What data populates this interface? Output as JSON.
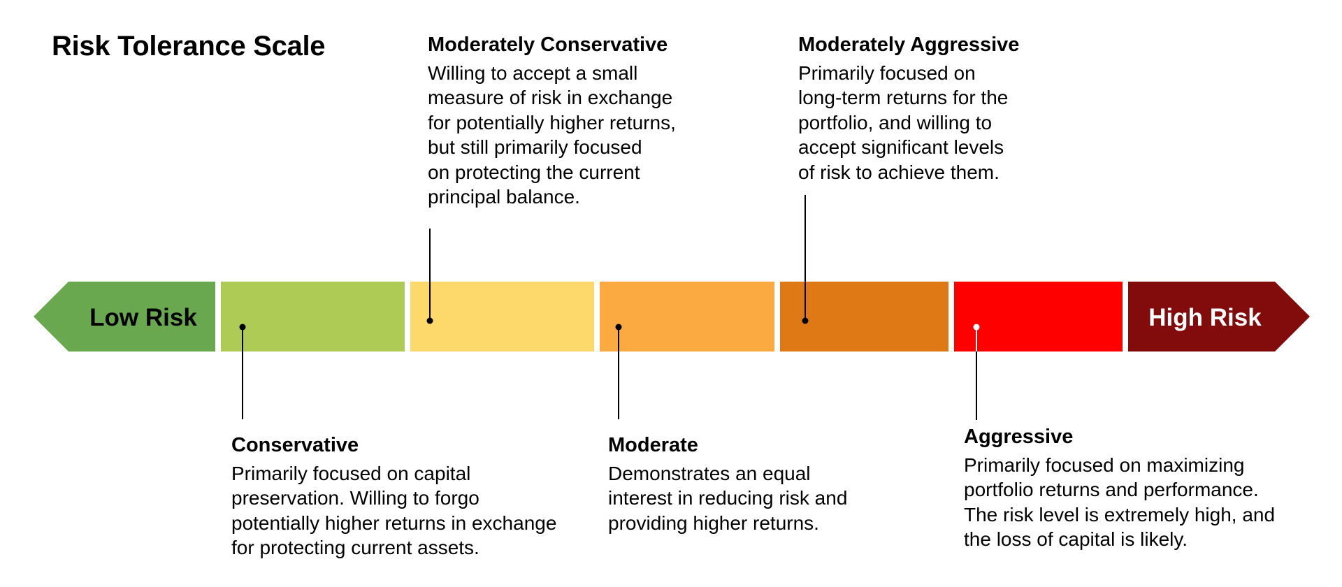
{
  "title": "Risk Tolerance Scale",
  "scale": {
    "low_label": "Low Risk",
    "high_label": "High Risk",
    "colors": {
      "low": "#6aa84f",
      "conservative": "#aecb55",
      "moderately_conservative": "#fdd86b",
      "moderate": "#fba941",
      "moderately_aggressive": "#de7915",
      "aggressive": "#fe0000",
      "high": "#820b0b"
    }
  },
  "levels": {
    "conservative": {
      "heading": "Conservative",
      "body": "Primarily focused on capital\npreservation. Willing to forgo\npotentially higher returns in exchange\nfor protecting current assets."
    },
    "moderately_conservative": {
      "heading": "Moderately Conservative",
      "body": "Willing to accept a small\nmeasure of risk in exchange\nfor potentially higher returns,\nbut still primarily focused\non protecting the current\nprincipal balance."
    },
    "moderate": {
      "heading": "Moderate",
      "body": "Demonstrates an equal\ninterest in reducing risk and\nproviding higher returns."
    },
    "moderately_aggressive": {
      "heading": "Moderately Aggressive",
      "body": "Primarily focused on\nlong-term returns for the\nportfolio, and willing to\naccept significant levels\nof risk to achieve them."
    },
    "aggressive": {
      "heading": "Aggressive",
      "body": "Primarily focused on maximizing\nportfolio returns and performance.\nThe risk level is extremely high, and\nthe loss of capital is likely."
    }
  }
}
